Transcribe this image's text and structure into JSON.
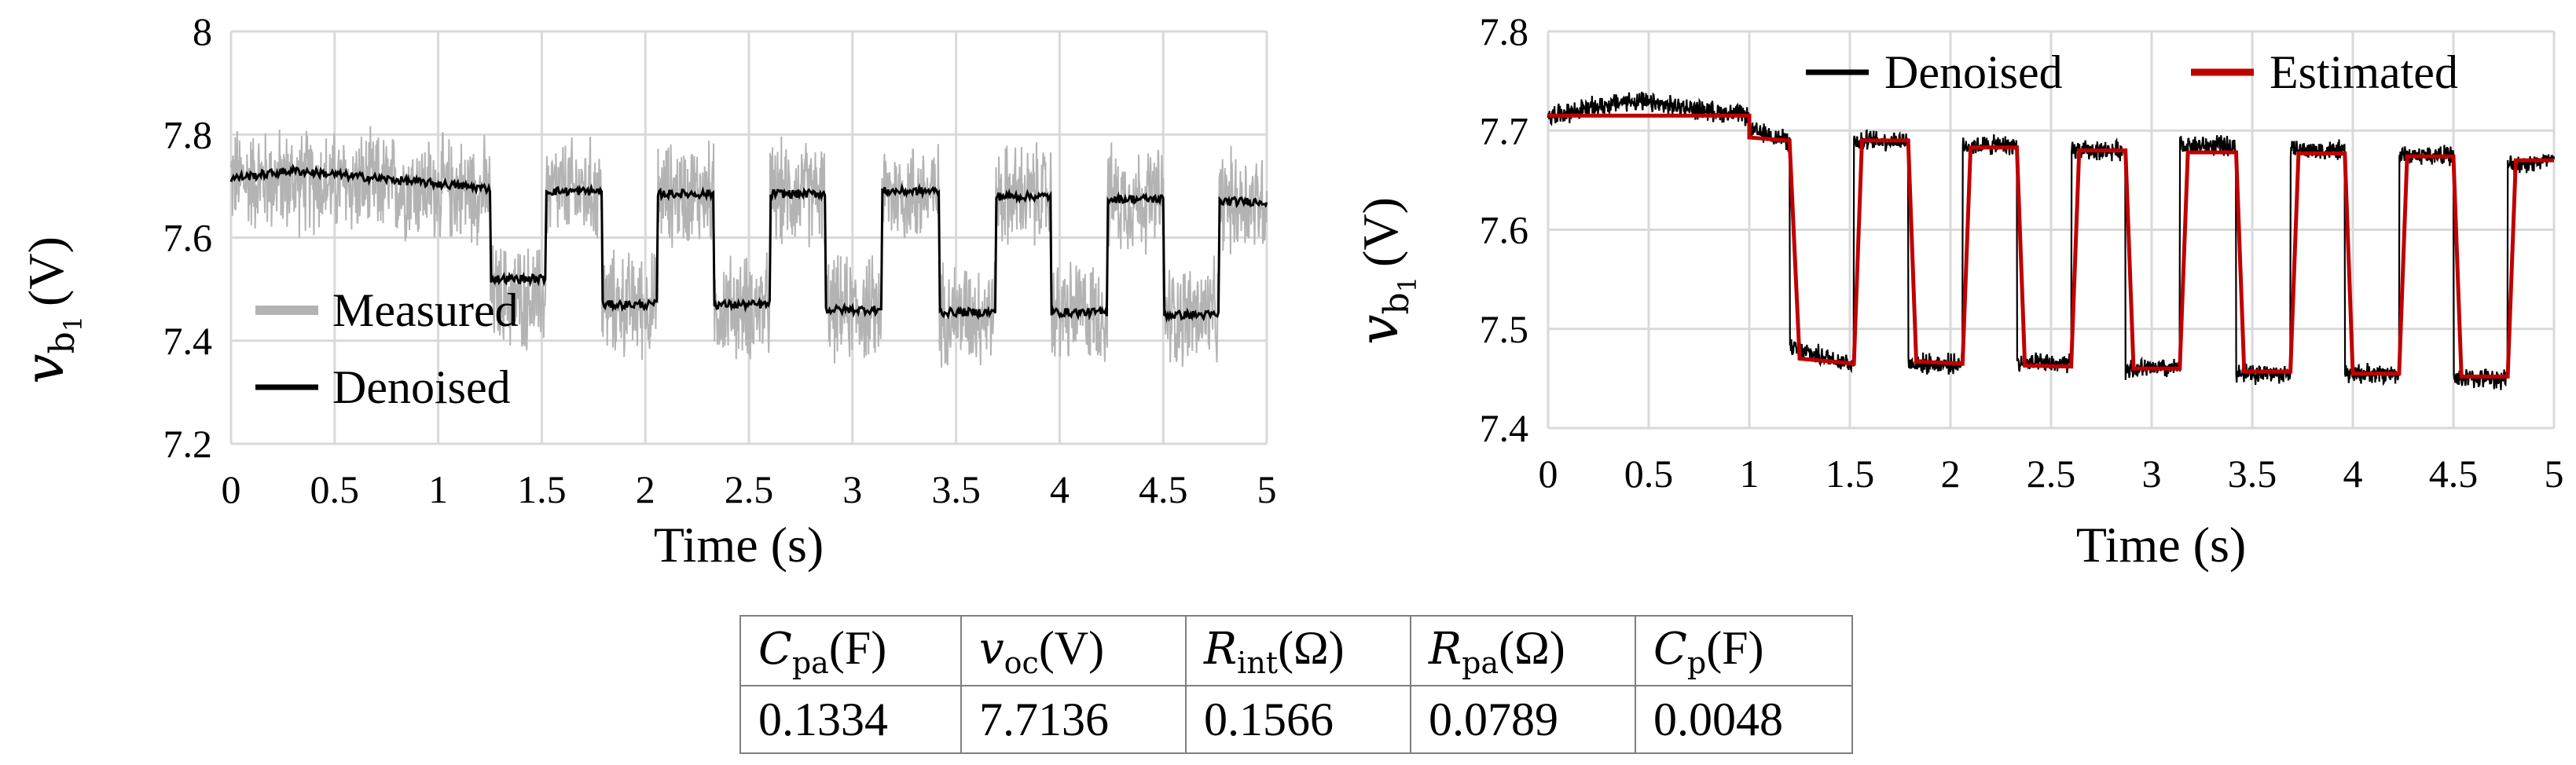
{
  "chart_data": [
    {
      "type": "line",
      "xlabel": "Time (s)",
      "ylabel": {
        "symbol": "v",
        "subscript": "b",
        "subsubscript": "1",
        "unit": "(V)"
      },
      "xlim": [
        0,
        5
      ],
      "ylim": [
        7.2,
        8.0
      ],
      "x_ticks": [
        "0",
        "0.5",
        "1",
        "1.5",
        "2",
        "2.5",
        "3",
        "3.5",
        "4",
        "4.5",
        "5"
      ],
      "y_ticks": [
        "7.2",
        "7.4",
        "7.6",
        "7.8",
        "8"
      ],
      "grid": true,
      "legend": [
        "Measured",
        "Denoised"
      ],
      "legend_position": "bottom-left",
      "series": [
        {
          "name": "Measured",
          "color": "#b3b3b3",
          "noise_band": 0.12,
          "x": [
            0,
            1.25,
            1.25,
            1.52,
            1.52,
            1.79,
            1.79,
            2.06,
            2.06,
            2.33,
            2.33,
            2.6,
            2.6,
            2.87,
            2.87,
            3.14,
            3.14,
            3.42,
            3.42,
            3.69,
            3.69,
            3.96,
            3.96,
            4.23,
            4.23,
            4.5,
            4.5,
            4.77,
            4.77,
            5.0
          ],
          "y": [
            7.715,
            7.69,
            7.49,
            7.48,
            7.69,
            7.69,
            7.47,
            7.47,
            7.685,
            7.685,
            7.465,
            7.465,
            7.685,
            7.685,
            7.46,
            7.46,
            7.685,
            7.685,
            7.455,
            7.455,
            7.68,
            7.68,
            7.455,
            7.455,
            7.675,
            7.675,
            7.45,
            7.45,
            7.67,
            7.67
          ]
        },
        {
          "name": "Denoised",
          "color": "#000000",
          "x": [
            0,
            0.3,
            1.25,
            1.25,
            1.52,
            1.52,
            1.79,
            1.79,
            2.06,
            2.06,
            2.33,
            2.33,
            2.6,
            2.6,
            2.87,
            2.87,
            3.14,
            3.14,
            3.42,
            3.42,
            3.69,
            3.69,
            3.96,
            3.96,
            4.23,
            4.23,
            4.5,
            4.5,
            4.77,
            4.77,
            5.0
          ],
          "y": [
            7.715,
            7.73,
            7.695,
            7.52,
            7.52,
            7.69,
            7.69,
            7.47,
            7.47,
            7.685,
            7.685,
            7.47,
            7.47,
            7.685,
            7.685,
            7.46,
            7.46,
            7.69,
            7.69,
            7.455,
            7.455,
            7.68,
            7.68,
            7.455,
            7.455,
            7.675,
            7.675,
            7.45,
            7.45,
            7.67,
            7.67
          ]
        }
      ]
    },
    {
      "type": "line",
      "xlabel": "Time (s)",
      "ylabel": {
        "symbol": "v",
        "subscript": "b",
        "subsubscript": "1",
        "unit": "(V)"
      },
      "xlim": [
        0,
        5
      ],
      "ylim": [
        7.4,
        7.8
      ],
      "x_ticks": [
        "0",
        "0.5",
        "1",
        "1.5",
        "2",
        "2.5",
        "3",
        "3.5",
        "4",
        "4.5",
        "5"
      ],
      "y_ticks": [
        "7.4",
        "7.5",
        "7.6",
        "7.7",
        "7.8"
      ],
      "grid": true,
      "legend": [
        "Denoised",
        "Estimated"
      ],
      "legend_position": "top",
      "series": [
        {
          "name": "Denoised",
          "color": "#000000",
          "noise_band": 0.012,
          "x": [
            0,
            0.4,
            1.0,
            1.0,
            1.2,
            1.2,
            1.52,
            1.52,
            1.79,
            1.79,
            2.06,
            2.06,
            2.33,
            2.33,
            2.6,
            2.6,
            2.87,
            2.87,
            3.14,
            3.14,
            3.42,
            3.42,
            3.69,
            3.69,
            3.96,
            3.96,
            4.23,
            4.23,
            4.5,
            4.5,
            4.77,
            4.77,
            5.0
          ],
          "y": [
            7.715,
            7.73,
            7.715,
            7.7,
            7.69,
            7.48,
            7.465,
            7.69,
            7.69,
            7.465,
            7.465,
            7.685,
            7.685,
            7.465,
            7.465,
            7.68,
            7.68,
            7.46,
            7.46,
            7.685,
            7.685,
            7.455,
            7.455,
            7.68,
            7.68,
            7.455,
            7.455,
            7.675,
            7.675,
            7.45,
            7.45,
            7.665,
            7.67
          ]
        },
        {
          "name": "Estimated",
          "color": "#c00000",
          "x": [
            0,
            1.0,
            1.0,
            1.2,
            1.25,
            1.52,
            1.56,
            1.79,
            1.83,
            2.06,
            2.1,
            2.33,
            2.37,
            2.6,
            2.64,
            2.87,
            2.91,
            3.14,
            3.18,
            3.42,
            3.46,
            3.69,
            3.73,
            3.96,
            4.0,
            4.23,
            4.27,
            4.5,
            4.54,
            4.77,
            4.81,
            5.0
          ],
          "y": [
            7.715,
            7.715,
            7.693,
            7.69,
            7.47,
            7.465,
            7.69,
            7.69,
            7.467,
            7.465,
            7.683,
            7.683,
            7.463,
            7.462,
            7.68,
            7.68,
            7.46,
            7.46,
            7.678,
            7.678,
            7.457,
            7.457,
            7.677,
            7.677,
            7.455,
            7.455,
            7.674,
            7.674,
            7.452,
            7.452,
            7.67,
            7.67
          ]
        }
      ]
    }
  ],
  "table": {
    "headers": [
      {
        "sym": "C",
        "sub": "pa",
        "unit": "(F)"
      },
      {
        "sym": "v",
        "sub": "oc",
        "unit": "(V)"
      },
      {
        "sym": "R",
        "sub": "int",
        "unit": "(Ω)"
      },
      {
        "sym": "R",
        "sub": "pa",
        "unit": "(Ω)"
      },
      {
        "sym": "C",
        "sub": "p",
        "unit": "(F)"
      }
    ],
    "values": [
      "0.1334",
      "7.7136",
      "0.1566",
      "0.0789",
      "0.0048"
    ]
  }
}
